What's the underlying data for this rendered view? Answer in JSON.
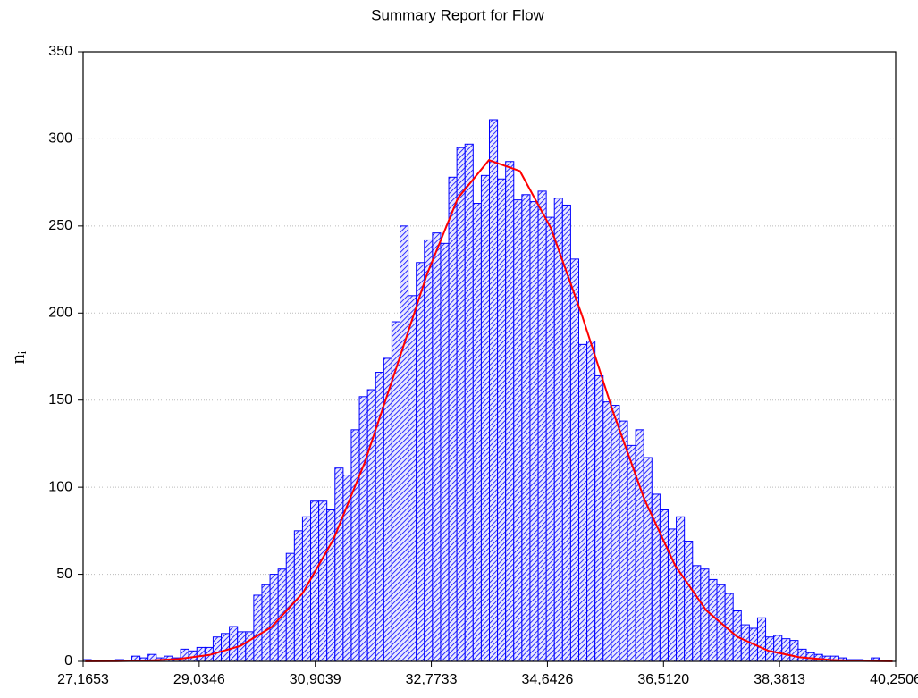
{
  "chart_data": {
    "type": "histogram",
    "title": "Summary Report for Flow",
    "y_label": "nᵢ",
    "bins": [
      27.1653,
      27.2962,
      27.427,
      27.5579,
      27.6887,
      27.8196,
      27.9504,
      28.0813,
      28.2121,
      28.343,
      28.4738,
      28.6047,
      28.7355,
      28.8664,
      28.9972,
      29.1281,
      29.2589,
      29.3898,
      29.5206,
      29.6515,
      29.7824,
      29.9132,
      30.0441,
      30.1749,
      30.3058,
      30.4366,
      30.5675,
      30.6983,
      30.8292,
      30.96,
      31.0909,
      31.2217,
      31.3526,
      31.4834,
      31.6143,
      31.7452,
      31.876,
      32.0069,
      32.1377,
      32.2686,
      32.3994,
      32.5303,
      32.6611,
      32.792,
      32.9228,
      33.0537,
      33.1845,
      33.3154,
      33.4462,
      33.5771,
      33.708,
      33.8388,
      33.9697,
      34.1005,
      34.2314,
      34.3622,
      34.4931,
      34.6239,
      34.7548,
      34.8856,
      35.0165,
      35.1473,
      35.2782,
      35.409,
      35.5399,
      35.6707,
      35.8016,
      35.9325,
      36.0633,
      36.1942,
      36.325,
      36.4559,
      36.5867,
      36.7176,
      36.8484,
      36.9793,
      37.1101,
      37.241,
      37.3718,
      37.5027,
      37.6335,
      37.7644,
      37.8952,
      38.0261,
      38.157,
      38.2878,
      38.4187,
      38.5495,
      38.6804,
      38.8112,
      38.9421,
      39.0729,
      39.2038,
      39.3346,
      39.4655,
      39.5963,
      39.7272,
      39.858,
      39.9889,
      40.1197,
      40.2506
    ],
    "values": [
      1,
      0,
      0,
      0,
      1,
      0,
      3,
      2,
      4,
      2,
      3,
      2,
      7,
      6,
      8,
      8,
      14,
      16,
      20,
      17,
      17,
      38,
      44,
      50,
      53,
      62,
      75,
      83,
      92,
      92,
      87,
      111,
      107,
      133,
      152,
      156,
      166,
      174,
      195,
      250,
      210,
      229,
      242,
      246,
      240,
      278,
      295,
      297,
      263,
      279,
      311,
      277,
      287,
      265,
      268,
      264,
      270,
      255,
      266,
      262,
      231,
      182,
      184,
      164,
      149,
      147,
      138,
      124,
      133,
      117,
      96,
      87,
      76,
      83,
      69,
      55,
      53,
      47,
      44,
      39,
      29,
      21,
      19,
      25,
      14,
      15,
      13,
      12,
      7,
      5,
      4,
      3,
      3,
      2,
      1,
      1,
      0,
      2,
      0,
      0
    ],
    "color": "#0000ff",
    "curve": {
      "x": [
        27.2,
        27.7,
        28.2,
        28.7,
        29.2,
        29.7,
        30.2,
        30.7,
        31.2,
        31.7,
        32.2,
        32.7,
        33.2,
        33.7,
        34.2,
        34.7,
        35.2,
        35.7,
        36.2,
        36.7,
        37.2,
        37.7,
        38.2,
        38.7,
        39.2,
        39.7,
        40.2
      ],
      "values": [
        0.04,
        0.14,
        0.46,
        1.36,
        3.7,
        8.9,
        19.7,
        39.1,
        70.3,
        114.2,
        167.5,
        222.0,
        266.0,
        287.8,
        281.5,
        248.7,
        198.6,
        143.3,
        93.4,
        55.0,
        29.3,
        14.1,
        6.1,
        2.4,
        0.85,
        0.27,
        0.08
      ],
      "color": "#ff0000"
    },
    "xlim": [
      27.1653,
      40.2506
    ],
    "xticks": [
      {
        "value": 27.1653,
        "label": "27,1653"
      },
      {
        "value": 29.0346,
        "label": "29,0346"
      },
      {
        "value": 30.9039,
        "label": "30,9039"
      },
      {
        "value": 32.7733,
        "label": "32,7733"
      },
      {
        "value": 34.6426,
        "label": "34,6426"
      },
      {
        "value": 36.512,
        "label": "36,5120"
      },
      {
        "value": 38.3813,
        "label": "38,3813"
      },
      {
        "value": 40.2506,
        "label": "40,2506"
      }
    ],
    "ylim": [
      0,
      350
    ],
    "yticks": [
      0,
      50,
      100,
      150,
      200,
      250,
      300,
      350
    ],
    "grid": true
  }
}
